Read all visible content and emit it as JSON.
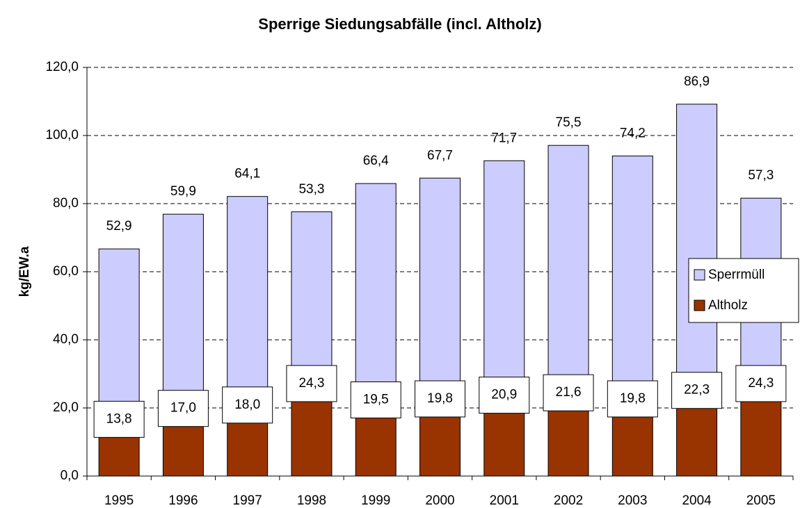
{
  "chart_data": {
    "type": "stacked_bar",
    "title": "Sperrige Siedungsabfälle (incl. Altholz)",
    "y_label": "kg/EW.a",
    "categories": [
      "1995",
      "1996",
      "1997",
      "1998",
      "1999",
      "2000",
      "2001",
      "2002",
      "2003",
      "2004",
      "2005"
    ],
    "series": [
      {
        "name": "Altholz",
        "color": "#993300",
        "values": [
          13.8,
          17.0,
          18.0,
          24.3,
          19.5,
          19.8,
          20.9,
          21.6,
          19.8,
          22.3,
          24.3
        ],
        "value_labels": [
          "13,8",
          "17,0",
          "18,0",
          "24,3",
          "19,5",
          "19,8",
          "20,9",
          "21,6",
          "19,8",
          "22,3",
          "24,3"
        ]
      },
      {
        "name": "Sperrmüll",
        "color": "#ccccff",
        "values": [
          52.9,
          59.9,
          64.1,
          53.3,
          66.4,
          67.7,
          71.7,
          75.5,
          74.2,
          86.9,
          57.3
        ],
        "value_labels": [
          "52,9",
          "59,9",
          "64,1",
          "53,3",
          "66,4",
          "67,7",
          "71,7",
          "75,5",
          "74,2",
          "86,9",
          "57,3"
        ]
      }
    ],
    "ylim": [
      0,
      120
    ],
    "yticks": [
      {
        "value": 0,
        "label": "0,0"
      },
      {
        "value": 20,
        "label": "20,0"
      },
      {
        "value": 40,
        "label": "40,0"
      },
      {
        "value": 60,
        "label": "60,0"
      },
      {
        "value": 80,
        "label": "80,0"
      },
      {
        "value": 100,
        "label": "100,0"
      },
      {
        "value": 120,
        "label": "120,0"
      }
    ],
    "grid": true,
    "legend": "right"
  }
}
